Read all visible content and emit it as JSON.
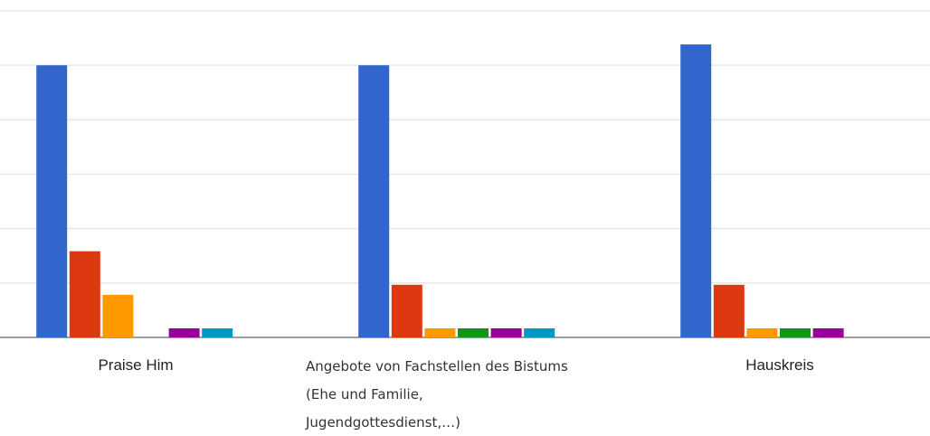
{
  "chart_data": {
    "type": "bar",
    "categories": [
      "Praise Him",
      "Angebote von Fachstellen des Bistums (Ehe und Familie, Jugendgottesdienst,…)",
      "Hauskreis"
    ],
    "series": [
      {
        "color": "#3366cc",
        "values": [
          30,
          30,
          32.3
        ]
      },
      {
        "color": "#dc3912",
        "values": [
          9.5,
          5.8,
          5.8
        ]
      },
      {
        "color": "#ff9900",
        "values": [
          4.7,
          1,
          1
        ]
      },
      {
        "color": "#109618",
        "values": [
          0,
          1,
          1
        ]
      },
      {
        "color": "#990099",
        "values": [
          1,
          1,
          1
        ]
      },
      {
        "color": "#0099c6",
        "values": [
          1,
          1,
          0
        ]
      }
    ],
    "ylim": [
      0,
      36
    ],
    "yticks": [
      0,
      6,
      12,
      18,
      24,
      30,
      36
    ],
    "grid": true
  }
}
